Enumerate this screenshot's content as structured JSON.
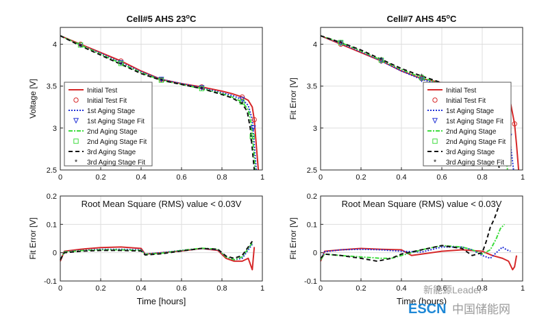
{
  "chart_data": [
    {
      "type": "line",
      "title": "Cell#5 AHS 23",
      "title_superscript": "o",
      "title_suffix": "C",
      "xlabel": "",
      "ylabel": "Voltage [V]",
      "xlim": [
        0,
        1
      ],
      "ylim": [
        2.5,
        4.2
      ],
      "xticks": [
        "0",
        "0.2",
        "0.4",
        "0.6",
        "0.8",
        "1"
      ],
      "yticks": [
        "2.5",
        "3",
        "3.5",
        "4"
      ],
      "grid": true,
      "legend": "center-left",
      "legend_entries": [
        "Initial Test",
        "Initial Test Fit",
        "1st Aging Stage",
        "1st Aging Stage Fit",
        "2nd Aging Stage",
        "2nd Aging Stage Fit",
        "3rd Aging Stage",
        "3rd Aging Stage Fit"
      ],
      "series": [
        {
          "name": "Initial Test",
          "color": "#d62728",
          "style": "solid",
          "x": [
            0,
            0.1,
            0.2,
            0.3,
            0.4,
            0.5,
            0.6,
            0.7,
            0.8,
            0.85,
            0.9,
            0.93,
            0.95,
            0.96,
            0.97,
            0.98
          ],
          "y": [
            4.1,
            4.0,
            3.9,
            3.8,
            3.68,
            3.58,
            3.53,
            3.49,
            3.44,
            3.41,
            3.37,
            3.33,
            3.25,
            3.1,
            2.8,
            2.5
          ]
        },
        {
          "name": "1st Aging Stage",
          "color": "#1f2fd6",
          "style": "dotted",
          "x": [
            0,
            0.1,
            0.2,
            0.3,
            0.4,
            0.5,
            0.6,
            0.7,
            0.8,
            0.85,
            0.9,
            0.93,
            0.95,
            0.96,
            0.97
          ],
          "y": [
            4.1,
            3.99,
            3.89,
            3.78,
            3.67,
            3.58,
            3.53,
            3.48,
            3.42,
            3.39,
            3.34,
            3.27,
            3.1,
            2.8,
            2.5
          ]
        },
        {
          "name": "2nd Aging Stage",
          "color": "#3ddc3d",
          "style": "dashdot",
          "x": [
            0,
            0.1,
            0.2,
            0.3,
            0.4,
            0.5,
            0.6,
            0.7,
            0.8,
            0.85,
            0.9,
            0.93,
            0.945,
            0.955,
            0.965
          ],
          "y": [
            4.1,
            3.99,
            3.88,
            3.77,
            3.66,
            3.57,
            3.52,
            3.47,
            3.41,
            3.37,
            3.31,
            3.22,
            3.05,
            2.8,
            2.5
          ]
        },
        {
          "name": "3rd Aging Stage",
          "color": "#111111",
          "style": "dashed",
          "x": [
            0,
            0.1,
            0.2,
            0.3,
            0.4,
            0.5,
            0.6,
            0.7,
            0.8,
            0.85,
            0.9,
            0.925,
            0.94,
            0.95,
            0.96
          ],
          "y": [
            4.1,
            3.98,
            3.87,
            3.76,
            3.65,
            3.57,
            3.52,
            3.47,
            3.4,
            3.36,
            3.29,
            3.2,
            3.0,
            2.75,
            2.5
          ]
        }
      ],
      "fits": [
        {
          "name": "Initial Test Fit",
          "color": "#d62728",
          "marker": "circle",
          "x": [
            0.1,
            0.3,
            0.5,
            0.7,
            0.9,
            0.96
          ],
          "y": [
            4.0,
            3.8,
            3.58,
            3.49,
            3.37,
            3.1
          ]
        },
        {
          "name": "1st Aging Stage Fit",
          "color": "#1f2fd6",
          "marker": "triangle-down",
          "x": [
            0.1,
            0.3,
            0.5,
            0.7,
            0.9,
            0.955
          ],
          "y": [
            3.99,
            3.78,
            3.58,
            3.48,
            3.34,
            3.0
          ]
        },
        {
          "name": "2nd Aging Stage Fit",
          "color": "#3ddc3d",
          "marker": "square",
          "x": [
            0.1,
            0.3,
            0.5,
            0.7,
            0.9,
            0.95
          ],
          "y": [
            3.99,
            3.77,
            3.57,
            3.47,
            3.31,
            2.9
          ]
        },
        {
          "name": "3rd Aging Stage Fit",
          "color": "#111111",
          "marker": "star",
          "x": [
            0.1,
            0.3,
            0.5,
            0.7,
            0.9,
            0.945
          ],
          "y": [
            3.98,
            3.76,
            3.57,
            3.47,
            3.29,
            2.85
          ]
        }
      ]
    },
    {
      "type": "line",
      "title": "Cell#7 AHS 45",
      "title_superscript": "o",
      "title_suffix": "C",
      "xlabel": "",
      "ylabel": "Fit Error [V]",
      "xlim": [
        0,
        1
      ],
      "ylim": [
        2.5,
        4.2
      ],
      "xticks": [
        "0",
        "0.2",
        "0.4",
        "0.6",
        "0.8",
        "1"
      ],
      "yticks": [
        "2.5",
        "3",
        "3.5",
        "4"
      ],
      "grid": true,
      "legend": "right",
      "legend_entries": [
        "Initial Test",
        "Initial Test Fit",
        "1st Aging Stage",
        "1st Aging Stage Fit",
        "2nd Aging Stage",
        "2nd Aging Stage Fit",
        "3rd Aging Stage",
        "3rd Aging Stage Fit"
      ],
      "series": [
        {
          "name": "Initial Test",
          "color": "#d62728",
          "style": "solid",
          "x": [
            0,
            0.1,
            0.2,
            0.3,
            0.4,
            0.5,
            0.6,
            0.7,
            0.8,
            0.85,
            0.9,
            0.94,
            0.96,
            0.97,
            0.98
          ],
          "y": [
            4.1,
            4.0,
            3.9,
            3.8,
            3.68,
            3.59,
            3.54,
            3.49,
            3.44,
            3.41,
            3.37,
            3.3,
            3.05,
            2.8,
            2.5
          ]
        },
        {
          "name": "1st Aging Stage",
          "color": "#1f2fd6",
          "style": "dotted",
          "x": [
            0,
            0.1,
            0.2,
            0.3,
            0.4,
            0.5,
            0.6,
            0.7,
            0.8,
            0.85,
            0.9,
            0.92,
            0.935,
            0.945,
            0.955
          ],
          "y": [
            4.1,
            4.01,
            3.91,
            3.8,
            3.68,
            3.58,
            3.52,
            3.46,
            3.38,
            3.33,
            3.22,
            3.1,
            2.9,
            2.7,
            2.5
          ]
        },
        {
          "name": "2nd Aging Stage",
          "color": "#3ddc3d",
          "style": "dashdot",
          "x": [
            0,
            0.1,
            0.2,
            0.3,
            0.4,
            0.5,
            0.6,
            0.7,
            0.8,
            0.84,
            0.87,
            0.89,
            0.905,
            0.915,
            0.925
          ],
          "y": [
            4.1,
            4.02,
            3.92,
            3.81,
            3.7,
            3.6,
            3.53,
            3.46,
            3.37,
            3.31,
            3.22,
            3.1,
            2.9,
            2.7,
            2.5
          ]
        },
        {
          "name": "3rd Aging Stage",
          "color": "#111111",
          "style": "dashed",
          "x": [
            0,
            0.1,
            0.2,
            0.3,
            0.4,
            0.5,
            0.6,
            0.7,
            0.75,
            0.8,
            0.83,
            0.85,
            0.865,
            0.875,
            0.885
          ],
          "y": [
            4.1,
            4.02,
            3.93,
            3.82,
            3.71,
            3.62,
            3.54,
            3.44,
            3.39,
            3.31,
            3.2,
            3.05,
            2.85,
            2.67,
            2.5
          ]
        }
      ],
      "fits": [
        {
          "name": "Initial Test Fit",
          "color": "#d62728",
          "marker": "circle",
          "x": [
            0.1,
            0.3,
            0.5,
            0.7,
            0.9,
            0.96
          ],
          "y": [
            4.0,
            3.8,
            3.59,
            3.49,
            3.37,
            3.05
          ]
        },
        {
          "name": "1st Aging Stage Fit",
          "color": "#1f2fd6",
          "marker": "triangle-down",
          "x": [
            0.1,
            0.3,
            0.5,
            0.7,
            0.9,
            0.935
          ],
          "y": [
            4.01,
            3.8,
            3.58,
            3.46,
            3.22,
            2.9
          ]
        },
        {
          "name": "2nd Aging Stage Fit",
          "color": "#3ddc3d",
          "marker": "square",
          "x": [
            0.1,
            0.3,
            0.5,
            0.7,
            0.87,
            0.905
          ],
          "y": [
            4.02,
            3.81,
            3.6,
            3.46,
            3.22,
            2.9
          ]
        },
        {
          "name": "3rd Aging Stage Fit",
          "color": "#111111",
          "marker": "star",
          "x": [
            0.1,
            0.3,
            0.5,
            0.7,
            0.83,
            0.865
          ],
          "y": [
            4.02,
            3.82,
            3.62,
            3.44,
            3.2,
            2.85
          ]
        }
      ]
    },
    {
      "type": "line",
      "title": "",
      "annotation": "Root Mean Square (RMS) value < 0.03V",
      "xlabel": "Time [hours]",
      "ylabel": "Fit Error [V]",
      "xlim": [
        0,
        1
      ],
      "ylim": [
        -0.1,
        0.2
      ],
      "xticks": [
        "0",
        "0.2",
        "0.4",
        "0.6",
        "0.8",
        "1"
      ],
      "yticks": [
        "-0.1",
        "0",
        "0.1",
        "0.2"
      ],
      "grid": true,
      "series": [
        {
          "name": "Initial Test",
          "color": "#d62728",
          "style": "solid",
          "x": [
            0,
            0.02,
            0.1,
            0.2,
            0.3,
            0.4,
            0.42,
            0.5,
            0.6,
            0.7,
            0.78,
            0.82,
            0.86,
            0.9,
            0.93,
            0.95,
            0.96
          ],
          "y": [
            -0.03,
            0.005,
            0.012,
            0.018,
            0.02,
            0.015,
            -0.005,
            0.0,
            0.006,
            0.015,
            0.008,
            -0.02,
            -0.03,
            -0.03,
            -0.02,
            -0.06,
            0.02
          ]
        },
        {
          "name": "1st Aging Stage",
          "color": "#1f2fd6",
          "style": "dotted",
          "x": [
            0,
            0.02,
            0.1,
            0.2,
            0.3,
            0.4,
            0.42,
            0.5,
            0.6,
            0.7,
            0.78,
            0.82,
            0.86,
            0.9,
            0.93,
            0.95
          ],
          "y": [
            -0.025,
            0.003,
            0.008,
            0.012,
            0.012,
            0.01,
            -0.005,
            0.0,
            0.008,
            0.015,
            0.01,
            -0.015,
            -0.025,
            -0.02,
            0.01,
            0.03
          ]
        },
        {
          "name": "2nd Aging Stage",
          "color": "#3ddc3d",
          "style": "dashdot",
          "x": [
            0,
            0.02,
            0.1,
            0.2,
            0.3,
            0.4,
            0.42,
            0.5,
            0.6,
            0.7,
            0.78,
            0.82,
            0.86,
            0.9,
            0.93,
            0.95
          ],
          "y": [
            -0.025,
            0.002,
            0.007,
            0.01,
            0.01,
            0.008,
            -0.006,
            -0.002,
            0.008,
            0.016,
            0.012,
            -0.015,
            -0.025,
            -0.015,
            0.015,
            0.035
          ]
        },
        {
          "name": "3rd Aging Stage",
          "color": "#111111",
          "style": "dashed",
          "x": [
            0,
            0.02,
            0.1,
            0.2,
            0.3,
            0.4,
            0.42,
            0.5,
            0.6,
            0.7,
            0.78,
            0.82,
            0.86,
            0.9,
            0.93,
            0.95
          ],
          "y": [
            -0.025,
            0.0,
            0.005,
            0.008,
            0.008,
            0.006,
            -0.008,
            -0.004,
            0.006,
            0.015,
            0.012,
            -0.012,
            -0.02,
            -0.01,
            0.02,
            0.04
          ]
        }
      ]
    },
    {
      "type": "line",
      "title": "",
      "annotation": "Root Mean Square (RMS) value < 0.03V",
      "xlabel": "Time (hours)",
      "ylabel": "Fit Error [V]",
      "xlim": [
        0,
        1
      ],
      "ylim": [
        -0.1,
        0.2
      ],
      "xticks": [
        "0",
        "0.2",
        "0.4",
        "0.6",
        "0.8",
        "1"
      ],
      "yticks": [
        "-0.1",
        "0",
        "0.1",
        "0.2"
      ],
      "grid": true,
      "series": [
        {
          "name": "Initial Test",
          "color": "#d62728",
          "style": "solid",
          "x": [
            0,
            0.02,
            0.1,
            0.2,
            0.3,
            0.4,
            0.45,
            0.5,
            0.6,
            0.7,
            0.8,
            0.85,
            0.9,
            0.93,
            0.95,
            0.96,
            0.97
          ],
          "y": [
            -0.03,
            0.005,
            0.01,
            0.015,
            0.012,
            0.01,
            -0.01,
            -0.005,
            0.005,
            0.01,
            0.005,
            -0.01,
            -0.02,
            -0.03,
            -0.06,
            -0.05,
            -0.01
          ]
        },
        {
          "name": "1st Aging Stage",
          "color": "#1f2fd6",
          "style": "dotted",
          "x": [
            0,
            0.02,
            0.1,
            0.2,
            0.3,
            0.4,
            0.5,
            0.6,
            0.7,
            0.75,
            0.8,
            0.84,
            0.87,
            0.9,
            0.92,
            0.94
          ],
          "y": [
            -0.025,
            0.003,
            0.01,
            0.012,
            0.01,
            0.005,
            0.002,
            0.02,
            0.02,
            0.01,
            -0.01,
            -0.02,
            0.0,
            0.02,
            0.01,
            0.005
          ]
        },
        {
          "name": "2nd Aging Stage",
          "color": "#3ddc3d",
          "style": "dashdot",
          "x": [
            0,
            0.02,
            0.1,
            0.2,
            0.3,
            0.35,
            0.4,
            0.5,
            0.6,
            0.7,
            0.75,
            0.8,
            0.84,
            0.87,
            0.89,
            0.91
          ],
          "y": [
            -0.025,
            -0.005,
            -0.01,
            -0.015,
            -0.02,
            -0.02,
            -0.01,
            0.01,
            0.025,
            0.02,
            0.01,
            -0.005,
            0.01,
            0.05,
            0.085,
            0.1
          ]
        },
        {
          "name": "3rd Aging Stage",
          "color": "#111111",
          "style": "dashed",
          "x": [
            0,
            0.02,
            0.1,
            0.2,
            0.28,
            0.35,
            0.4,
            0.5,
            0.6,
            0.7,
            0.75,
            0.8,
            0.82,
            0.84,
            0.86,
            0.88
          ],
          "y": [
            -0.02,
            -0.005,
            -0.01,
            -0.02,
            -0.03,
            -0.02,
            -0.005,
            0.01,
            0.025,
            0.015,
            -0.01,
            0.0,
            0.04,
            0.09,
            0.12,
            0.16
          ]
        }
      ]
    }
  ],
  "watermark": {
    "line1": "新能源Leader",
    "brand": "ESCN",
    "site": "中国储能网"
  }
}
